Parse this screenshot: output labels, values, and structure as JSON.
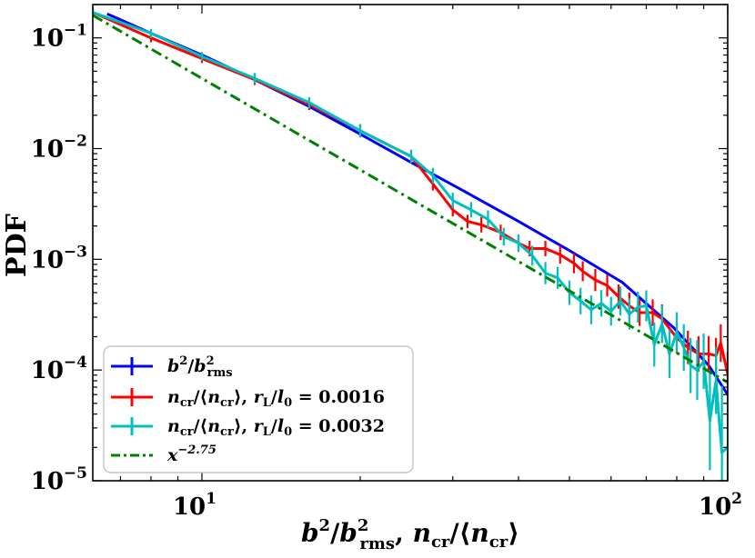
{
  "chart_data": {
    "type": "line",
    "xscale": "log",
    "yscale": "log",
    "xlim": [
      6.2,
      100
    ],
    "ylim": [
      1e-05,
      0.2
    ],
    "x_ticks": [
      {
        "value": 10,
        "base": "10",
        "exp": "1"
      },
      {
        "value": 100,
        "base": "10",
        "exp": "2"
      }
    ],
    "y_ticks": [
      {
        "value": 0.1,
        "base": "10",
        "exp": "−1"
      },
      {
        "value": 0.01,
        "base": "10",
        "exp": "−2"
      },
      {
        "value": 0.001,
        "base": "10",
        "exp": "−3"
      },
      {
        "value": 0.0001,
        "base": "10",
        "exp": "−4"
      },
      {
        "value": 1e-05,
        "base": "10",
        "exp": "−5"
      }
    ],
    "xlabel": "b²/b²rms, ncr/⟨ncr⟩",
    "ylabel": "PDF",
    "legend_position": "lower-left",
    "series": [
      {
        "name": "b²/b²rms",
        "color": "#0000ff",
        "points": [
          [
            6.6,
            0.165
          ],
          [
            8,
            0.11
          ],
          [
            10,
            0.07
          ],
          [
            12.6,
            0.042
          ],
          [
            16,
            0.024
          ],
          [
            20,
            0.0135
          ],
          [
            25,
            0.0075
          ],
          [
            31.6,
            0.0041
          ],
          [
            40,
            0.0022
          ],
          [
            50,
            0.0012
          ],
          [
            63,
            0.00062
          ],
          [
            79,
            0.00024
          ],
          [
            92,
            0.00011
          ],
          [
            100,
            6e-05
          ]
        ],
        "errors": []
      },
      {
        "name": "ncr/⟨ncr⟩, rL/l0 = 0.0016",
        "color": "#ff0000",
        "points": [
          [
            6.2,
            0.17
          ],
          [
            8,
            0.1
          ],
          [
            10,
            0.065
          ],
          [
            12.6,
            0.042
          ],
          [
            16,
            0.025
          ],
          [
            20,
            0.0145
          ],
          [
            25,
            0.0085
          ],
          [
            27.5,
            0.0048
          ],
          [
            30,
            0.0028
          ],
          [
            32,
            0.0022
          ],
          [
            34,
            0.00205
          ],
          [
            37,
            0.00175
          ],
          [
            40,
            0.0014
          ],
          [
            42,
            0.00125
          ],
          [
            45,
            0.00125
          ],
          [
            48,
            0.0011
          ],
          [
            51,
            0.00092
          ],
          [
            53,
            0.00078
          ],
          [
            56,
            0.00065
          ],
          [
            59,
            0.00058
          ],
          [
            62,
            0.00046
          ],
          [
            65,
            0.00038
          ],
          [
            68,
            0.00033
          ],
          [
            72,
            0.00033
          ],
          [
            75,
            0.00029
          ],
          [
            80,
            0.000195
          ],
          [
            84,
            0.00016
          ],
          [
            88,
            0.00014
          ],
          [
            92,
            0.00014
          ],
          [
            95,
            0.000135
          ],
          [
            97,
            0.000175
          ],
          [
            100,
            9.2e-05
          ]
        ],
        "errors": [
          0.04,
          0.04,
          0.04,
          0.05,
          0.05,
          0.06,
          0.06,
          0.06,
          0.06,
          0.06,
          0.07,
          0.07,
          0.07,
          0.07,
          0.07,
          0.08,
          0.09,
          0.09,
          0.1,
          0.1,
          0.11,
          0.12,
          0.12,
          0.12,
          0.13,
          0.14,
          0.15,
          0.16,
          0.16,
          0.16,
          0.17,
          0.2
        ]
      },
      {
        "name": "ncr/⟨ncr⟩, rL/l0 = 0.0032",
        "color": "#00bfbf",
        "points": [
          [
            6.2,
            0.17
          ],
          [
            8,
            0.11
          ],
          [
            10,
            0.068
          ],
          [
            12.6,
            0.043
          ],
          [
            16,
            0.026
          ],
          [
            20,
            0.0145
          ],
          [
            25,
            0.0085
          ],
          [
            27.5,
            0.0057
          ],
          [
            30,
            0.0034
          ],
          [
            32.5,
            0.0028
          ],
          [
            35,
            0.0023
          ],
          [
            37.5,
            0.0016
          ],
          [
            40,
            0.0014
          ],
          [
            42.5,
            0.00108
          ],
          [
            45,
            0.00075
          ],
          [
            47.5,
            0.00068
          ],
          [
            50,
            0.0005
          ],
          [
            52.5,
            0.00042
          ],
          [
            55,
            0.00035
          ],
          [
            57.5,
            0.0004
          ],
          [
            60,
            0.00034
          ],
          [
            62.5,
            0.00042
          ],
          [
            65,
            0.00032
          ],
          [
            67.5,
            0.00037
          ],
          [
            70,
            0.00038
          ],
          [
            72.5,
            0.00017
          ],
          [
            75,
            0.00026
          ],
          [
            77.5,
            0.00014
          ],
          [
            80,
            0.00022
          ],
          [
            82.5,
            0.00016
          ],
          [
            85,
            0.00011
          ],
          [
            87.5,
            0.0001
          ],
          [
            90,
            0.00012
          ],
          [
            92.5,
            3.5e-05
          ],
          [
            95,
            8e-05
          ],
          [
            97.5,
            1.8e-05
          ],
          [
            100,
            2e-05
          ]
        ],
        "errors": [
          0.04,
          0.04,
          0.04,
          0.05,
          0.05,
          0.06,
          0.06,
          0.07,
          0.07,
          0.07,
          0.08,
          0.08,
          0.08,
          0.09,
          0.1,
          0.1,
          0.11,
          0.12,
          0.13,
          0.12,
          0.13,
          0.13,
          0.14,
          0.14,
          0.14,
          0.2,
          0.17,
          0.22,
          0.18,
          0.21,
          0.25,
          0.27,
          0.25,
          0.45,
          0.3,
          0.6,
          0.45
        ]
      },
      {
        "name": "x⁻²·⁷⁵",
        "color": "#008000",
        "style": "dashdot",
        "points": [
          [
            6.2,
            0.16
          ],
          [
            100,
            7.75e-05
          ]
        ],
        "errors": []
      }
    ]
  },
  "legend": {
    "items": [
      {
        "label_main": "b",
        "sup": "2",
        "tail": "/b",
        "sup2": "2",
        "sub": "rms"
      },
      {
        "label": "ncr/⟨ncr⟩, rL/l0 = 0.0016"
      },
      {
        "label": "ncr/⟨ncr⟩, rL/l0 = 0.0032"
      },
      {
        "label": "x⁻²·⁷⁵"
      }
    ]
  }
}
